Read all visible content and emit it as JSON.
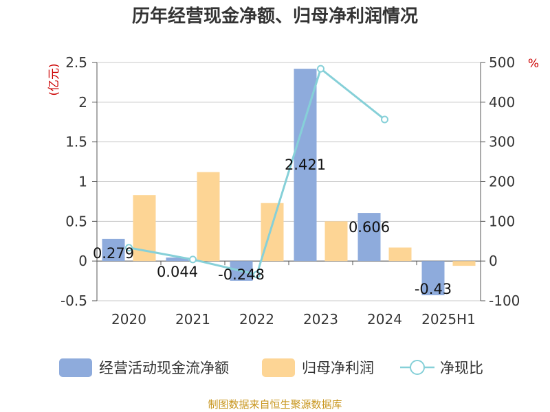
{
  "chart_data": {
    "type": "bar",
    "title": "历年经营现金净额、归母净利润情况",
    "categories": [
      "2020",
      "2021",
      "2022",
      "2023",
      "2024",
      "2025H1"
    ],
    "y_left": {
      "label": "(亿元)",
      "min": -0.5,
      "max": 2.5,
      "ticks": [
        "-0.5",
        "0",
        "0.5",
        "1",
        "1.5",
        "2",
        "2.5"
      ]
    },
    "y_right": {
      "label": "%",
      "min": -100,
      "max": 500,
      "ticks": [
        "-100",
        "0",
        "100",
        "200",
        "300",
        "400",
        "500"
      ]
    },
    "series": [
      {
        "name": "经营活动现金流净额",
        "type": "bar",
        "axis": "left",
        "color": "#8eabdc",
        "values": [
          0.279,
          0.044,
          -0.248,
          2.421,
          0.606,
          -0.43
        ],
        "labels": [
          "0.279",
          "0.044",
          "-0.248",
          "2.421",
          "0.606",
          "-0.43"
        ]
      },
      {
        "name": "归母净利润",
        "type": "bar",
        "axis": "left",
        "color": "#fdd595",
        "values": [
          0.83,
          1.12,
          0.73,
          0.5,
          0.17,
          -0.06
        ]
      },
      {
        "name": "净现比",
        "type": "line",
        "axis": "right",
        "color": "#86d0d8",
        "values": [
          33.6,
          3.9,
          -34.0,
          484.2,
          356.5,
          null
        ]
      }
    ],
    "grid": true,
    "legend": "bottom"
  },
  "source": "制图数据来自恒生聚源数据库"
}
